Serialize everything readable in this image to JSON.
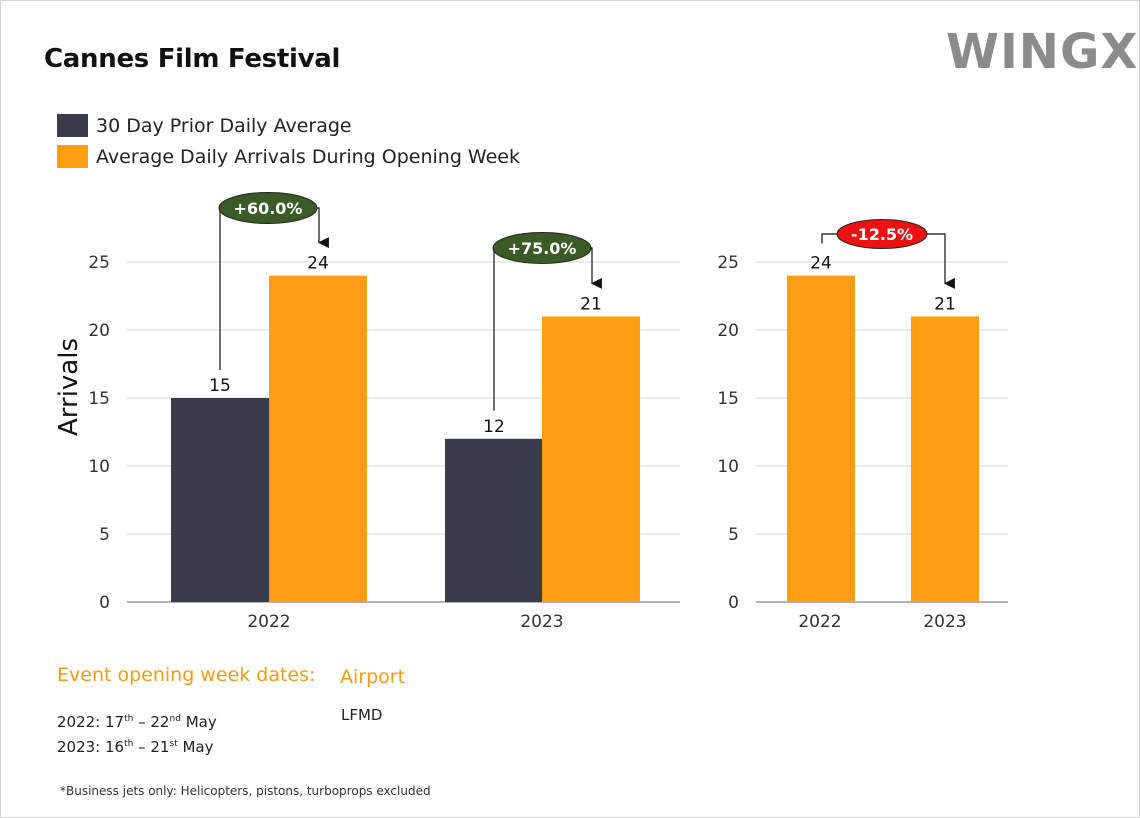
{
  "title": "Cannes Film Festival",
  "logo": "WINGX",
  "colors": {
    "prior": "#3b3b4d",
    "opening": "#ff9e12",
    "up": "#3a5a26",
    "down": "#ee1111"
  },
  "legend": [
    {
      "label": "30 Day Prior Daily Average",
      "color": "#3b3b4d"
    },
    {
      "label": "Average Daily Arrivals During Opening Week",
      "color": "#ff9e12"
    }
  ],
  "chart_data": [
    {
      "type": "bar",
      "categories": [
        "2022",
        "2023"
      ],
      "series": [
        {
          "name": "30 Day Prior Daily Average",
          "values": [
            15,
            12
          ]
        },
        {
          "name": "Average Daily Arrivals During Opening Week",
          "values": [
            24,
            21
          ]
        }
      ],
      "ylabel": "Arrivals",
      "ylim": [
        0,
        25
      ],
      "yticks": [
        0,
        5,
        10,
        15,
        20,
        25
      ],
      "grid": true,
      "annotations": [
        "+60.0%",
        "+75.0%"
      ]
    },
    {
      "type": "bar",
      "categories": [
        "2022",
        "2023"
      ],
      "series": [
        {
          "values": [
            24,
            21
          ]
        }
      ],
      "ylim": [
        0,
        25
      ],
      "yticks": [
        0,
        5,
        10,
        15,
        20,
        25
      ],
      "grid": true,
      "annotations": [
        "-12.5%"
      ]
    }
  ],
  "info": {
    "dates_heading": "Event opening week dates:",
    "dates": [
      {
        "year": "2022:",
        "start": "17",
        "start_sup": "th",
        "end": "22",
        "end_sup": "nd",
        "month": "May"
      },
      {
        "year": "2023:",
        "start": "16",
        "start_sup": "th",
        "end": "21",
        "end_sup": "st",
        "month": "May"
      }
    ],
    "airport_heading": "Airport",
    "airport": "LFMD"
  },
  "footnote": "*Business jets only: Helicopters, pistons, turboprops excluded"
}
